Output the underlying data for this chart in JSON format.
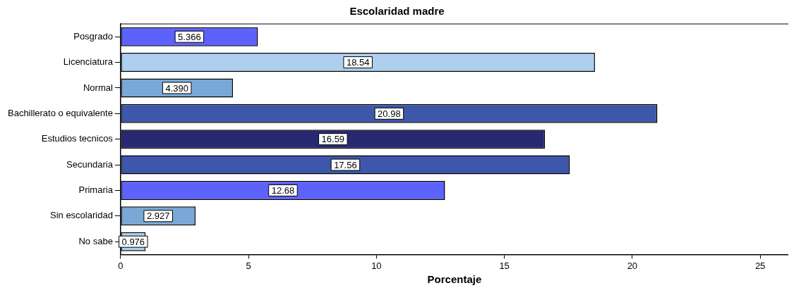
{
  "chart_data": {
    "type": "bar",
    "orientation": "horizontal",
    "title": "Escolaridad madre",
    "xlabel": "Porcentaje",
    "categories": [
      "Posgrado",
      "Licenciatura",
      "Normal",
      "Bachillerato o equivalente",
      "Estudios tecnicos",
      "Secundaria",
      "Primaria",
      "Sin escolaridad",
      "No sabe"
    ],
    "values": [
      5.366,
      18.54,
      4.39,
      20.98,
      16.59,
      17.56,
      12.68,
      2.927,
      0.976
    ],
    "value_labels": [
      "5.366",
      "18.54",
      "4.390",
      "20.98",
      "16.59",
      "17.56",
      "12.68",
      "2.927",
      "0.976"
    ],
    "colors": [
      "#5d62fd",
      "#aecfee",
      "#7aa8d6",
      "#3f57ab",
      "#282873",
      "#3f57ab",
      "#5d62fd",
      "#7aa8d6",
      "#aecfee"
    ],
    "xlim": [
      0,
      26.1
    ],
    "xticks": [
      0,
      5,
      10,
      15,
      20,
      25
    ],
    "grid": false,
    "legend": false
  }
}
